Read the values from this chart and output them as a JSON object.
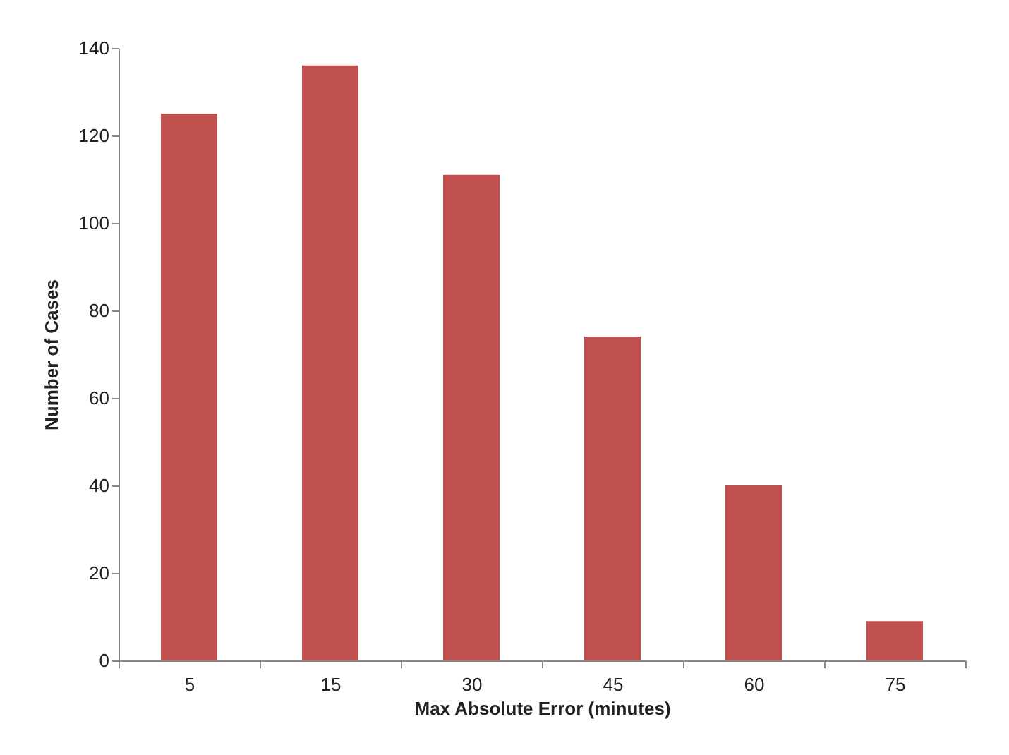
{
  "chart_data": {
    "type": "bar",
    "xlabel": "Max Absolute Error (minutes)",
    "ylabel": "Number of Cases",
    "categories": [
      "5",
      "15",
      "30",
      "45",
      "60",
      "75"
    ],
    "values": [
      125,
      136,
      111,
      74,
      40,
      9
    ],
    "color": "#c0504d",
    "ylim": [
      0,
      140
    ],
    "yticks": [
      0,
      20,
      40,
      60,
      80,
      100,
      120,
      140
    ],
    "grid": false
  }
}
